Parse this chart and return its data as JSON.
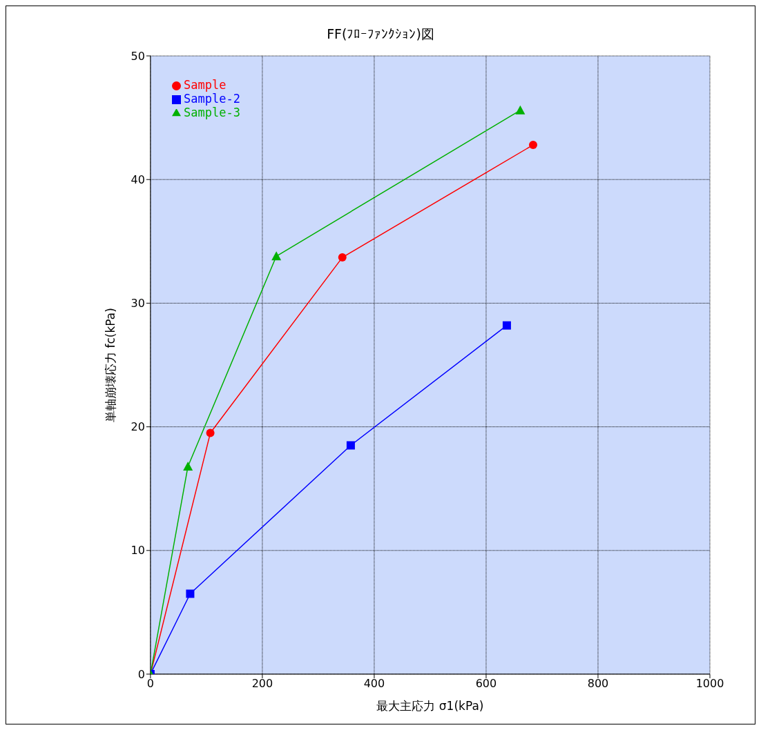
{
  "chart_data": {
    "type": "line",
    "title": "FF(ﾌﾛｰﾌｧﾝｸｼｮﾝ)図",
    "xlabel": "最大主応力 σ1(kPa)",
    "ylabel": "単軸崩壊応力 fc(kPa)",
    "xlim": [
      0,
      1000
    ],
    "xticks": [
      0,
      200,
      400,
      600,
      800,
      1000
    ],
    "ylim": [
      0,
      50
    ],
    "yticks": [
      0,
      10,
      20,
      30,
      40,
      50
    ],
    "grid": true,
    "legend": "top left",
    "series": [
      {
        "name": "Sample",
        "color": "#ff0000",
        "marker": "circle",
        "x": [
          0,
          107,
          343,
          684
        ],
        "values": [
          0,
          19.5,
          33.7,
          42.8
        ]
      },
      {
        "name": "Sample-2",
        "color": "#0000ff",
        "marker": "square",
        "x": [
          0,
          71,
          358,
          637
        ],
        "values": [
          0,
          6.5,
          18.5,
          28.2
        ]
      },
      {
        "name": "Sample-3",
        "color": "#00b000",
        "marker": "triangle",
        "x": [
          0,
          67,
          225,
          661
        ],
        "values": [
          0,
          16.8,
          33.8,
          45.6
        ]
      }
    ]
  }
}
